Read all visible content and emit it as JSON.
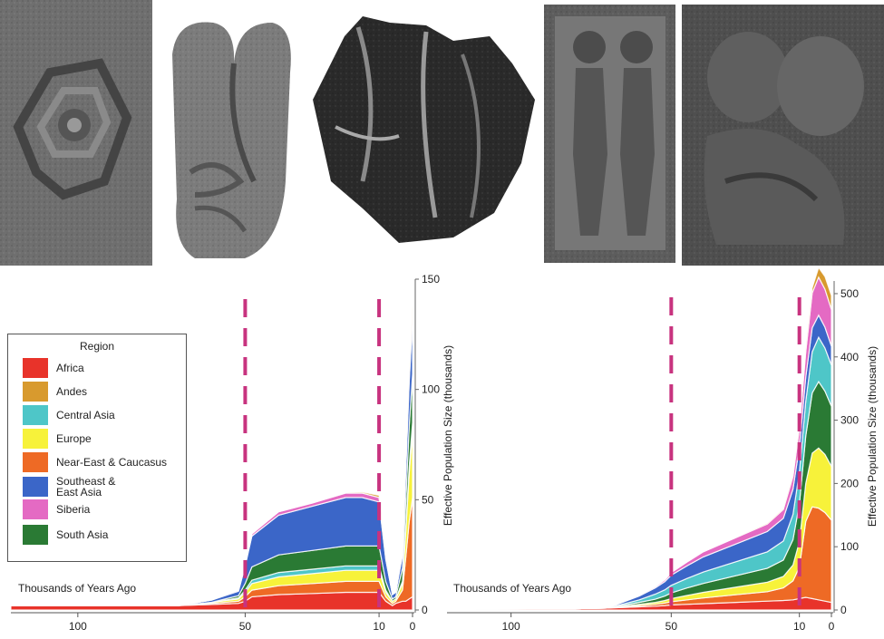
{
  "figure": {
    "photos": [
      {
        "name": "carved-spiral-petroglyph"
      },
      {
        "name": "stone-figurine-embrace"
      },
      {
        "name": "dark-carved-figures"
      },
      {
        "name": "relief-plaque-couple"
      },
      {
        "name": "carved-relief-embrace"
      }
    ]
  },
  "legend": {
    "title": "Region",
    "items": [
      {
        "label": "Africa",
        "color": "#e8332a"
      },
      {
        "label": "Andes",
        "color": "#d89a2e"
      },
      {
        "label": "Central Asia",
        "color": "#4ec6c8"
      },
      {
        "label": "Europe",
        "color": "#f7f23a"
      },
      {
        "label": "Near-East & Caucasus",
        "color": "#ee6a25"
      },
      {
        "label": "Southeast &\nEast Asia",
        "color": "#3b66c8"
      },
      {
        "label": "Siberia",
        "color": "#e46ac3"
      },
      {
        "label": "South Asia",
        "color": "#2a7a34"
      }
    ]
  },
  "chart_data": [
    {
      "type": "area",
      "xlabel": "Thousands of Years Ago",
      "ylabel": "Effective Population Size (thousands)",
      "xlim": [
        120,
        0
      ],
      "ylim": [
        0,
        150
      ],
      "xticks": [
        100,
        50,
        10,
        0
      ],
      "yticks": [
        0,
        50,
        100,
        150
      ],
      "vlines": [
        50,
        10
      ],
      "x": [
        120,
        80,
        70,
        60,
        52,
        50,
        48,
        40,
        30,
        20,
        15,
        10,
        8,
        6,
        5,
        3,
        2,
        1,
        0
      ],
      "series": [
        {
          "color": "#e8332a",
          "values": [
            2,
            2,
            2,
            2.5,
            3,
            4,
            6,
            7,
            7.5,
            8,
            8,
            8,
            4,
            2,
            3,
            4,
            4,
            5,
            6
          ]
        },
        {
          "color": "#ee6a25",
          "values": [
            0,
            0,
            0,
            0.5,
            1,
            2,
            3,
            4,
            4.5,
            5,
            5,
            5,
            2,
            1,
            1,
            5,
            20,
            35,
            45
          ]
        },
        {
          "color": "#f7f23a",
          "values": [
            0,
            0,
            0,
            0.5,
            1,
            2,
            3,
            4,
            4.5,
            5,
            5,
            5,
            2,
            1,
            1,
            3,
            12,
            22,
            30
          ]
        },
        {
          "color": "#4ec6c8",
          "values": [
            0,
            0,
            0,
            0,
            0.5,
            1,
            1.5,
            2,
            2,
            2,
            2,
            2,
            1,
            0,
            0,
            1,
            2,
            3,
            4
          ]
        },
        {
          "color": "#2a7a34",
          "values": [
            0,
            0,
            0,
            0,
            1,
            3,
            6,
            8,
            8.5,
            9,
            9,
            9,
            4,
            1,
            1,
            6,
            12,
            18,
            22
          ]
        },
        {
          "color": "#3b66c8",
          "values": [
            0,
            0,
            0,
            1,
            2,
            8,
            14,
            18,
            20,
            22,
            22,
            20,
            10,
            2,
            2,
            6,
            14,
            20,
            25
          ]
        },
        {
          "color": "#e46ac3",
          "values": [
            0,
            0,
            0,
            0,
            0.5,
            1,
            1,
            1.5,
            1.5,
            2,
            2,
            2,
            1,
            0,
            0,
            1,
            2,
            3,
            4
          ]
        },
        {
          "color": "#d89a2e",
          "values": [
            0,
            0,
            0,
            0,
            0,
            0,
            0,
            0,
            0,
            0,
            0.5,
            1,
            0.5,
            0,
            0,
            0,
            1,
            1.5,
            2
          ]
        }
      ]
    },
    {
      "type": "area",
      "xlabel": "Thousands of Years Ago",
      "ylabel": "Effective Population Size (thousands)",
      "xlim": [
        120,
        0
      ],
      "ylim": [
        0,
        520
      ],
      "xticks": [
        100,
        50,
        10,
        0
      ],
      "yticks": [
        0,
        100,
        200,
        300,
        400,
        500
      ],
      "vlines": [
        50,
        10
      ],
      "x": [
        120,
        80,
        70,
        60,
        55,
        52,
        50,
        45,
        40,
        30,
        20,
        15,
        12,
        10,
        8,
        6,
        4,
        2,
        0
      ],
      "series": [
        {
          "color": "#e8332a",
          "values": [
            1,
            2,
            3,
            5,
            6,
            7,
            8,
            9,
            10,
            12,
            14,
            15,
            16,
            18,
            20,
            18,
            16,
            14,
            12
          ]
        },
        {
          "color": "#ee6a25",
          "values": [
            0,
            0,
            0,
            2,
            3,
            4,
            5,
            7,
            9,
            12,
            15,
            20,
            30,
            50,
            120,
            145,
            145,
            140,
            130
          ]
        },
        {
          "color": "#f7f23a",
          "values": [
            0,
            0,
            0,
            2,
            3,
            4,
            5,
            7,
            9,
            12,
            15,
            18,
            25,
            40,
            60,
            85,
            95,
            92,
            85
          ]
        },
        {
          "color": "#2a7a34",
          "values": [
            0,
            0,
            0,
            3,
            5,
            7,
            9,
            12,
            14,
            18,
            22,
            26,
            40,
            60,
            75,
            95,
            105,
            100,
            95
          ]
        },
        {
          "color": "#4ec6c8",
          "values": [
            0,
            0,
            0,
            4,
            8,
            10,
            12,
            15,
            18,
            22,
            26,
            30,
            40,
            50,
            55,
            65,
            70,
            68,
            65
          ]
        },
        {
          "color": "#3b66c8",
          "values": [
            0,
            0,
            0,
            6,
            10,
            13,
            16,
            20,
            24,
            28,
            32,
            36,
            40,
            40,
            38,
            38,
            35,
            33,
            30
          ]
        },
        {
          "color": "#e46ac3",
          "values": [
            0,
            0,
            0,
            1,
            2,
            3,
            4,
            6,
            8,
            10,
            12,
            14,
            20,
            30,
            40,
            55,
            60,
            60,
            58
          ]
        },
        {
          "color": "#d89a2e",
          "values": [
            0,
            0,
            0,
            0,
            0,
            0,
            0,
            0,
            0,
            0,
            1,
            1,
            2,
            3,
            4,
            8,
            15,
            20,
            22
          ]
        }
      ]
    }
  ]
}
